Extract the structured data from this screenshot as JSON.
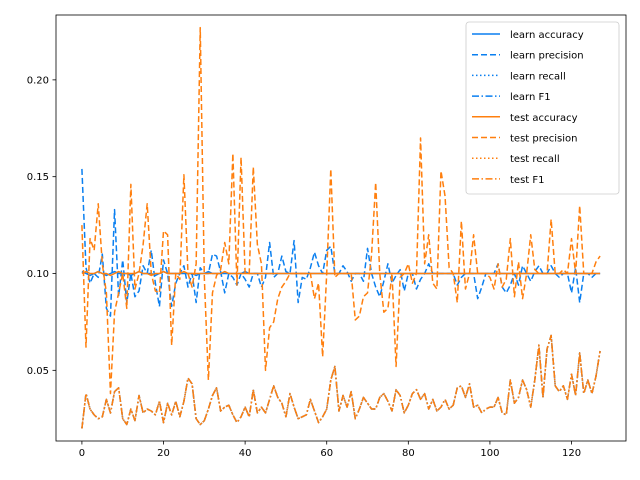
{
  "chart_data": {
    "type": "line",
    "title": "",
    "xlabel": "",
    "ylabel": "",
    "xlim": [
      -6.35,
      133.35
    ],
    "ylim": [
      0.0135,
      0.2335
    ],
    "xticks": [
      0,
      20,
      40,
      60,
      80,
      100,
      120
    ],
    "xtick_labels": [
      "0",
      "20",
      "40",
      "60",
      "80",
      "100",
      "120"
    ],
    "yticks": [
      0.05,
      0.1,
      0.15,
      0.2
    ],
    "ytick_labels": [
      "0.05",
      "0.10",
      "0.15",
      "0.20"
    ],
    "grid": false,
    "legend_position": "upper right",
    "colors": {
      "learn": "#1f77e4",
      "test": "#ff7f0e"
    },
    "series": [
      {
        "name": "learn accuracy",
        "color": "#0a7ff0",
        "dash": "solid",
        "values": [
          0.101,
          0.1,
          0.099,
          0.1,
          0.101,
          0.1,
          0.099,
          0.1,
          0.101,
          0.1,
          0.1,
          0.1,
          0.099,
          0.1,
          0.101,
          0.1,
          0.1,
          0.1,
          0.099,
          0.1,
          0.101,
          0.1,
          0.1,
          0.1,
          0.1,
          0.1,
          0.1,
          0.1,
          0.099,
          0.1,
          0.1,
          0.101,
          0.1,
          0.1,
          0.1,
          0.1,
          0.1,
          0.1,
          0.1,
          0.1,
          0.101,
          0.1,
          0.1,
          0.1,
          0.1,
          0.1,
          0.1,
          0.1,
          0.1,
          0.1,
          0.1,
          0.1,
          0.1,
          0.1,
          0.1,
          0.1,
          0.1,
          0.1,
          0.1,
          0.1,
          0.1,
          0.1,
          0.1,
          0.1,
          0.1,
          0.1,
          0.1,
          0.1,
          0.1,
          0.1,
          0.1,
          0.1,
          0.1,
          0.1,
          0.1,
          0.1,
          0.1,
          0.1,
          0.1,
          0.1,
          0.1,
          0.1,
          0.1,
          0.1,
          0.1,
          0.1,
          0.1,
          0.1,
          0.1,
          0.1,
          0.1,
          0.1,
          0.1,
          0.1,
          0.1,
          0.1,
          0.1,
          0.1,
          0.1,
          0.1,
          0.1,
          0.1,
          0.1,
          0.1,
          0.1,
          0.1,
          0.1,
          0.1,
          0.1,
          0.1,
          0.1,
          0.1,
          0.1,
          0.1,
          0.1,
          0.1,
          0.1,
          0.1,
          0.1,
          0.1,
          0.1,
          0.1,
          0.1,
          0.1,
          0.1,
          0.1,
          0.1,
          0.1
        ]
      },
      {
        "name": "learn precision",
        "color": "#0a7ff0",
        "dash": "dashed",
        "values": [
          0.154,
          0.103,
          0.095,
          0.1,
          0.098,
          0.11,
          0.082,
          0.078,
          0.133,
          0.088,
          0.107,
          0.085,
          0.1,
          0.088,
          0.091,
          0.104,
          0.1,
          0.112,
          0.095,
          0.083,
          0.107,
          0.1,
          0.083,
          0.095,
          0.1,
          0.104,
          0.093,
          0.1,
          0.085,
          0.103,
          0.1,
          0.1,
          0.11,
          0.109,
          0.101,
          0.09,
          0.1,
          0.098,
          0.094,
          0.1,
          0.097,
          0.093,
          0.1,
          0.1,
          0.093,
          0.098,
          0.116,
          0.098,
          0.1,
          0.109,
          0.101,
          0.1,
          0.117,
          0.085,
          0.098,
          0.097,
          0.103,
          0.111,
          0.104,
          0.1,
          0.112,
          0.114,
          0.1,
          0.1,
          0.104,
          0.101,
          0.096,
          0.1,
          0.1,
          0.096,
          0.113,
          0.1,
          0.093,
          0.088,
          0.096,
          0.105,
          0.095,
          0.099,
          0.102,
          0.091,
          0.1,
          0.1,
          0.092,
          0.097,
          0.1,
          0.105,
          0.1,
          0.1,
          0.1,
          0.1,
          0.1,
          0.1,
          0.094,
          0.098,
          0.1,
          0.1,
          0.1,
          0.087,
          0.093,
          0.1,
          0.1,
          0.1,
          0.105,
          0.093,
          0.09,
          0.094,
          0.1,
          0.094,
          0.104,
          0.1,
          0.096,
          0.101,
          0.104,
          0.1,
          0.1,
          0.104,
          0.1,
          0.098,
          0.1,
          0.1,
          0.09,
          0.103,
          0.085,
          0.1,
          0.1,
          0.098,
          0.1,
          0.1
        ]
      },
      {
        "name": "learn recall",
        "color": "#0a7ff0",
        "dash": "dotted",
        "values": [
          0.02,
          0.038,
          0.03,
          0.027,
          0.025,
          0.026,
          0.035,
          0.028,
          0.039,
          0.041,
          0.025,
          0.022,
          0.03,
          0.024,
          0.037,
          0.028,
          0.03,
          0.029,
          0.027,
          0.034,
          0.023,
          0.033,
          0.027,
          0.034,
          0.026,
          0.034,
          0.046,
          0.043,
          0.025,
          0.022,
          0.024,
          0.03,
          0.037,
          0.041,
          0.029,
          0.031,
          0.032,
          0.027,
          0.023,
          0.026,
          0.031,
          0.026,
          0.04,
          0.028,
          0.031,
          0.028,
          0.035,
          0.042,
          0.036,
          0.033,
          0.026,
          0.038,
          0.031,
          0.025,
          0.026,
          0.027,
          0.035,
          0.029,
          0.023,
          0.026,
          0.03,
          0.045,
          0.052,
          0.029,
          0.037,
          0.031,
          0.039,
          0.025,
          0.03,
          0.036,
          0.033,
          0.03,
          0.03,
          0.036,
          0.038,
          0.034,
          0.029,
          0.04,
          0.037,
          0.028,
          0.032,
          0.038,
          0.04,
          0.035,
          0.038,
          0.03,
          0.035,
          0.029,
          0.031,
          0.035,
          0.03,
          0.032,
          0.041,
          0.042,
          0.036,
          0.043,
          0.031,
          0.032,
          0.028,
          0.03,
          0.031,
          0.031,
          0.036,
          0.028,
          0.027,
          0.045,
          0.033,
          0.036,
          0.045,
          0.04,
          0.031,
          0.045,
          0.063,
          0.036,
          0.061,
          0.068,
          0.042,
          0.039,
          0.042,
          0.035,
          0.048,
          0.037,
          0.059,
          0.038,
          0.045,
          0.038,
          0.047,
          0.06
        ]
      },
      {
        "name": "learn F1",
        "color": "#0a7ff0",
        "dash": "dashdot",
        "values": [
          0.02,
          0.038,
          0.03,
          0.027,
          0.025,
          0.026,
          0.035,
          0.028,
          0.039,
          0.041,
          0.025,
          0.022,
          0.03,
          0.024,
          0.037,
          0.028,
          0.03,
          0.029,
          0.027,
          0.034,
          0.023,
          0.033,
          0.027,
          0.034,
          0.026,
          0.034,
          0.046,
          0.043,
          0.025,
          0.022,
          0.024,
          0.03,
          0.037,
          0.041,
          0.029,
          0.031,
          0.032,
          0.027,
          0.023,
          0.026,
          0.031,
          0.026,
          0.04,
          0.028,
          0.031,
          0.028,
          0.035,
          0.042,
          0.036,
          0.033,
          0.026,
          0.038,
          0.031,
          0.025,
          0.026,
          0.027,
          0.035,
          0.029,
          0.023,
          0.026,
          0.03,
          0.045,
          0.052,
          0.029,
          0.037,
          0.031,
          0.039,
          0.025,
          0.03,
          0.036,
          0.033,
          0.03,
          0.03,
          0.036,
          0.038,
          0.034,
          0.029,
          0.04,
          0.037,
          0.028,
          0.032,
          0.038,
          0.04,
          0.035,
          0.038,
          0.03,
          0.035,
          0.029,
          0.031,
          0.035,
          0.03,
          0.032,
          0.041,
          0.042,
          0.036,
          0.043,
          0.031,
          0.032,
          0.028,
          0.03,
          0.031,
          0.031,
          0.036,
          0.028,
          0.027,
          0.045,
          0.033,
          0.036,
          0.045,
          0.04,
          0.031,
          0.045,
          0.063,
          0.036,
          0.061,
          0.068,
          0.042,
          0.039,
          0.042,
          0.035,
          0.048,
          0.037,
          0.059,
          0.038,
          0.045,
          0.038,
          0.047,
          0.06
        ]
      },
      {
        "name": "test accuracy",
        "color": "#ff7f0e",
        "dash": "solid",
        "values": [
          0.1,
          0.101,
          0.1,
          0.1,
          0.101,
          0.1,
          0.1,
          0.099,
          0.1,
          0.101,
          0.1,
          0.1,
          0.1,
          0.1,
          0.101,
          0.1,
          0.1,
          0.099,
          0.1,
          0.1,
          0.101,
          0.1,
          0.1,
          0.1,
          0.1,
          0.101,
          0.1,
          0.1,
          0.1,
          0.1,
          0.1,
          0.1,
          0.1,
          0.1,
          0.1,
          0.101,
          0.1,
          0.1,
          0.1,
          0.1,
          0.1,
          0.1,
          0.1,
          0.1,
          0.1,
          0.1,
          0.1,
          0.1,
          0.1,
          0.1,
          0.1,
          0.1,
          0.1,
          0.1,
          0.1,
          0.1,
          0.1,
          0.1,
          0.1,
          0.1,
          0.1,
          0.1,
          0.1,
          0.1,
          0.1,
          0.1,
          0.1,
          0.1,
          0.1,
          0.1,
          0.1,
          0.1,
          0.1,
          0.1,
          0.1,
          0.1,
          0.1,
          0.1,
          0.1,
          0.1,
          0.1,
          0.1,
          0.1,
          0.1,
          0.1,
          0.1,
          0.1,
          0.1,
          0.1,
          0.1,
          0.1,
          0.1,
          0.1,
          0.1,
          0.1,
          0.1,
          0.1,
          0.1,
          0.1,
          0.1,
          0.1,
          0.1,
          0.1,
          0.1,
          0.1,
          0.1,
          0.1,
          0.1,
          0.1,
          0.1,
          0.1,
          0.1,
          0.1,
          0.1,
          0.1,
          0.1,
          0.1,
          0.1,
          0.1,
          0.1,
          0.1,
          0.1,
          0.1,
          0.1,
          0.1,
          0.1,
          0.1,
          0.1
        ]
      },
      {
        "name": "test precision",
        "color": "#ff7f0e",
        "dash": "dashed",
        "values": [
          0.125,
          0.062,
          0.118,
          0.112,
          0.136,
          0.105,
          0.09,
          0.038,
          0.08,
          0.09,
          0.1,
          0.082,
          0.146,
          0.092,
          0.1,
          0.115,
          0.136,
          0.1,
          0.091,
          0.09,
          0.122,
          0.12,
          0.063,
          0.1,
          0.097,
          0.151,
          0.1,
          0.093,
          0.105,
          0.227,
          0.098,
          0.045,
          0.09,
          0.099,
          0.102,
          0.116,
          0.105,
          0.162,
          0.094,
          0.16,
          0.1,
          0.1,
          0.155,
          0.115,
          0.105,
          0.05,
          0.072,
          0.075,
          0.087,
          0.093,
          0.096,
          0.1,
          0.1,
          0.1,
          0.1,
          0.1,
          0.1,
          0.087,
          0.095,
          0.057,
          0.1,
          0.154,
          0.098,
          0.1,
          0.1,
          0.1,
          0.1,
          0.076,
          0.078,
          0.088,
          0.09,
          0.11,
          0.147,
          0.1,
          0.08,
          0.082,
          0.1,
          0.052,
          0.098,
          0.1,
          0.105,
          0.095,
          0.1,
          0.17,
          0.105,
          0.12,
          0.095,
          0.092,
          0.153,
          0.14,
          0.103,
          0.1,
          0.085,
          0.127,
          0.092,
          0.1,
          0.12,
          0.1,
          0.1,
          0.1,
          0.098,
          0.092,
          0.105,
          0.093,
          0.097,
          0.118,
          0.088,
          0.106,
          0.087,
          0.1,
          0.12,
          0.102,
          0.1,
          0.1,
          0.1,
          0.128,
          0.1,
          0.1,
          0.102,
          0.1,
          0.118,
          0.1,
          0.135,
          0.1,
          0.1,
          0.1,
          0.106,
          0.109
        ]
      },
      {
        "name": "test recall",
        "color": "#ff7f0e",
        "dash": "dotted",
        "values": [
          0.02,
          0.038,
          0.03,
          0.027,
          0.025,
          0.026,
          0.035,
          0.028,
          0.039,
          0.041,
          0.025,
          0.022,
          0.03,
          0.024,
          0.037,
          0.028,
          0.03,
          0.029,
          0.027,
          0.034,
          0.023,
          0.033,
          0.027,
          0.034,
          0.026,
          0.034,
          0.046,
          0.043,
          0.025,
          0.022,
          0.024,
          0.03,
          0.037,
          0.041,
          0.029,
          0.031,
          0.032,
          0.027,
          0.023,
          0.026,
          0.031,
          0.026,
          0.04,
          0.028,
          0.031,
          0.028,
          0.035,
          0.042,
          0.036,
          0.033,
          0.026,
          0.038,
          0.031,
          0.025,
          0.026,
          0.027,
          0.035,
          0.029,
          0.023,
          0.026,
          0.03,
          0.045,
          0.052,
          0.029,
          0.037,
          0.031,
          0.039,
          0.025,
          0.03,
          0.036,
          0.033,
          0.03,
          0.03,
          0.036,
          0.038,
          0.034,
          0.029,
          0.04,
          0.037,
          0.028,
          0.032,
          0.038,
          0.04,
          0.035,
          0.038,
          0.03,
          0.035,
          0.029,
          0.031,
          0.035,
          0.03,
          0.032,
          0.041,
          0.042,
          0.036,
          0.043,
          0.031,
          0.032,
          0.028,
          0.03,
          0.031,
          0.031,
          0.036,
          0.028,
          0.027,
          0.045,
          0.033,
          0.036,
          0.045,
          0.04,
          0.031,
          0.045,
          0.063,
          0.036,
          0.061,
          0.068,
          0.042,
          0.039,
          0.042,
          0.035,
          0.048,
          0.037,
          0.059,
          0.038,
          0.045,
          0.038,
          0.047,
          0.06
        ]
      },
      {
        "name": "test F1",
        "color": "#ff7f0e",
        "dash": "dashdot",
        "values": [
          0.02,
          0.038,
          0.03,
          0.027,
          0.025,
          0.026,
          0.035,
          0.028,
          0.039,
          0.041,
          0.025,
          0.022,
          0.03,
          0.024,
          0.037,
          0.028,
          0.03,
          0.029,
          0.027,
          0.034,
          0.023,
          0.033,
          0.027,
          0.034,
          0.026,
          0.034,
          0.046,
          0.043,
          0.025,
          0.022,
          0.024,
          0.03,
          0.037,
          0.041,
          0.029,
          0.031,
          0.032,
          0.027,
          0.023,
          0.026,
          0.031,
          0.026,
          0.04,
          0.028,
          0.031,
          0.028,
          0.035,
          0.042,
          0.036,
          0.033,
          0.026,
          0.038,
          0.031,
          0.025,
          0.026,
          0.027,
          0.035,
          0.029,
          0.023,
          0.026,
          0.03,
          0.045,
          0.052,
          0.029,
          0.037,
          0.031,
          0.039,
          0.025,
          0.03,
          0.036,
          0.033,
          0.03,
          0.03,
          0.036,
          0.038,
          0.034,
          0.029,
          0.04,
          0.037,
          0.028,
          0.032,
          0.038,
          0.04,
          0.035,
          0.038,
          0.03,
          0.035,
          0.029,
          0.031,
          0.035,
          0.03,
          0.032,
          0.041,
          0.042,
          0.036,
          0.043,
          0.031,
          0.032,
          0.028,
          0.03,
          0.031,
          0.031,
          0.036,
          0.028,
          0.027,
          0.045,
          0.033,
          0.036,
          0.045,
          0.04,
          0.031,
          0.045,
          0.063,
          0.036,
          0.061,
          0.068,
          0.042,
          0.039,
          0.042,
          0.035,
          0.048,
          0.037,
          0.059,
          0.038,
          0.045,
          0.038,
          0.047,
          0.06
        ]
      }
    ]
  }
}
